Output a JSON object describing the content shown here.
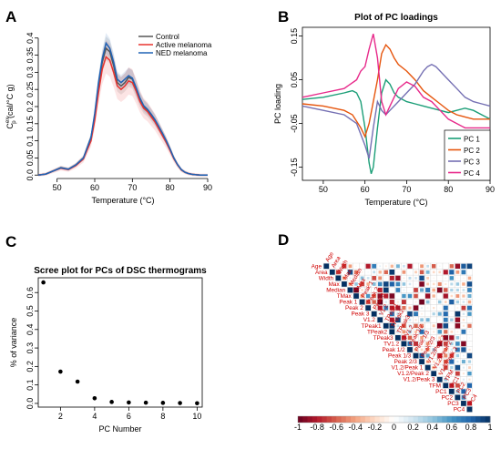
{
  "panels": {
    "A": {
      "letter": "A",
      "chart_data": {
        "type": "line",
        "title": "",
        "xlabel": "Temperature (°C)",
        "ylabel": "Cp ex (cal/°C g)",
        "ylabel_main": "C",
        "ylabel_sub": "p",
        "ylabel_sup": "ex",
        "ylabel_rest": " (cal/°C g)",
        "xlim": [
          45,
          90
        ],
        "ylim": [
          -0.01,
          0.41
        ],
        "xticks": [
          50,
          60,
          70,
          80,
          90
        ],
        "yticks": [
          0.0,
          0.05,
          0.1,
          0.15,
          0.2,
          0.25,
          0.3,
          0.35,
          0.4
        ],
        "ytick_labels": [
          "0.0",
          "0.05",
          "0.1",
          "0.15",
          "0.2",
          "0.25",
          "0.3",
          "0.35",
          "0.4"
        ],
        "legend_position": "top-right",
        "series": [
          {
            "name": "Control",
            "color": "#555555",
            "x": [
              45,
              47,
              49,
              51,
              53,
              55,
              57,
              59,
              60,
              61,
              62,
              63,
              64,
              65,
              66,
              67,
              68,
              69,
              70,
              71,
              72,
              73,
              74,
              75,
              76,
              77,
              78,
              79,
              80,
              81,
              82,
              83,
              84,
              85,
              86,
              87,
              88,
              89,
              90
            ],
            "y": [
              0.0,
              0.003,
              0.012,
              0.022,
              0.017,
              0.03,
              0.05,
              0.11,
              0.17,
              0.26,
              0.33,
              0.37,
              0.36,
              0.32,
              0.27,
              0.26,
              0.27,
              0.285,
              0.28,
              0.25,
              0.22,
              0.2,
              0.19,
              0.175,
              0.16,
              0.14,
              0.12,
              0.1,
              0.075,
              0.05,
              0.03,
              0.015,
              0.008,
              0.004,
              0.002,
              0.001,
              0.0,
              0.0,
              0.0
            ]
          },
          {
            "name": "Active melanoma",
            "color": "#e8322e",
            "x": [
              45,
              47,
              49,
              51,
              53,
              55,
              57,
              59,
              60,
              61,
              62,
              63,
              64,
              65,
              66,
              67,
              68,
              69,
              70,
              71,
              72,
              73,
              74,
              75,
              76,
              77,
              78,
              79,
              80,
              81,
              82,
              83,
              84,
              85,
              86,
              87,
              88,
              89,
              90
            ],
            "y": [
              0.0,
              0.003,
              0.012,
              0.02,
              0.016,
              0.028,
              0.047,
              0.1,
              0.16,
              0.24,
              0.31,
              0.345,
              0.335,
              0.3,
              0.26,
              0.25,
              0.26,
              0.275,
              0.27,
              0.245,
              0.215,
              0.195,
              0.185,
              0.17,
              0.155,
              0.135,
              0.115,
              0.095,
              0.072,
              0.048,
              0.03,
              0.015,
              0.008,
              0.004,
              0.002,
              0.001,
              0.0,
              0.0,
              0.0
            ]
          },
          {
            "name": "NED melanoma",
            "color": "#1f63b5",
            "x": [
              45,
              47,
              49,
              51,
              53,
              55,
              57,
              59,
              60,
              61,
              62,
              63,
              64,
              65,
              66,
              67,
              68,
              69,
              70,
              71,
              72,
              73,
              74,
              75,
              76,
              77,
              78,
              79,
              80,
              81,
              82,
              83,
              84,
              85,
              86,
              87,
              88,
              89,
              90
            ],
            "y": [
              0.0,
              0.003,
              0.012,
              0.021,
              0.017,
              0.03,
              0.05,
              0.11,
              0.18,
              0.27,
              0.34,
              0.385,
              0.37,
              0.33,
              0.28,
              0.27,
              0.28,
              0.29,
              0.283,
              0.255,
              0.225,
              0.203,
              0.192,
              0.178,
              0.162,
              0.142,
              0.122,
              0.1,
              0.076,
              0.05,
              0.031,
              0.016,
              0.008,
              0.004,
              0.002,
              0.001,
              0.0,
              0.0,
              0.0
            ]
          }
        ]
      }
    },
    "B": {
      "letter": "B",
      "chart_data": {
        "type": "line",
        "title": "Plot of PC loadings",
        "xlabel": "Temperature (°C)",
        "ylabel": "PC loading",
        "xlim": [
          45,
          90
        ],
        "ylim": [
          -0.18,
          0.17
        ],
        "xticks": [
          50,
          60,
          70,
          80,
          90
        ],
        "yticks": [
          -0.15,
          -0.05,
          0.05,
          0.15
        ],
        "ytick_labels": [
          "-0.15",
          "-0.05",
          "0.05",
          "0.15"
        ],
        "legend_position": "bottom-right",
        "series": [
          {
            "name": "PC 1",
            "color": "#1b9e77",
            "x": [
              45,
              50,
              55,
              57,
              58,
              59,
              60,
              61,
              61.5,
              62,
              63,
              64,
              65,
              66,
              67,
              68,
              70,
              72,
              74,
              76,
              78,
              80,
              82,
              84,
              86,
              88,
              90
            ],
            "y": [
              0.005,
              0.01,
              0.02,
              0.025,
              0.02,
              0.0,
              -0.06,
              -0.14,
              -0.165,
              -0.15,
              -0.06,
              0.02,
              0.05,
              0.04,
              0.02,
              0.01,
              0.0,
              -0.005,
              -0.01,
              -0.015,
              -0.02,
              -0.025,
              -0.02,
              -0.015,
              -0.02,
              -0.03,
              -0.04
            ]
          },
          {
            "name": "PC 2",
            "color": "#e6550d",
            "x": [
              45,
              50,
              55,
              57,
              59,
              60,
              61,
              62,
              63,
              64,
              65,
              66,
              67,
              68,
              70,
              72,
              74,
              76,
              78,
              80,
              82,
              84,
              86,
              88,
              90
            ],
            "y": [
              -0.005,
              -0.01,
              -0.02,
              -0.03,
              -0.06,
              -0.08,
              -0.05,
              0.0,
              0.05,
              0.11,
              0.13,
              0.12,
              0.1,
              0.085,
              0.07,
              0.05,
              0.025,
              0.01,
              -0.005,
              -0.02,
              -0.03,
              -0.035,
              -0.04,
              -0.04,
              -0.04
            ]
          },
          {
            "name": "PC 3",
            "color": "#7570b3",
            "x": [
              45,
              50,
              55,
              58,
              60,
              61,
              62,
              63,
              64,
              65,
              66,
              68,
              70,
              72,
              74,
              75,
              76,
              77,
              78,
              80,
              82,
              84,
              86,
              88,
              90
            ],
            "y": [
              -0.01,
              -0.02,
              -0.03,
              -0.05,
              -0.1,
              -0.13,
              -0.06,
              0.0,
              -0.02,
              -0.03,
              -0.02,
              0.0,
              0.02,
              0.04,
              0.07,
              0.08,
              0.085,
              0.08,
              0.07,
              0.05,
              0.03,
              0.01,
              0.0,
              -0.005,
              -0.01
            ]
          },
          {
            "name": "PC 4",
            "color": "#e7298a",
            "x": [
              45,
              50,
              55,
              58,
              59,
              60,
              61,
              62,
              63,
              64,
              65,
              66,
              68,
              70,
              72,
              74,
              76,
              78,
              80,
              82,
              84,
              86,
              88,
              90
            ],
            "y": [
              0.01,
              0.02,
              0.03,
              0.05,
              0.07,
              0.08,
              0.12,
              0.155,
              0.1,
              0.0,
              -0.03,
              -0.01,
              0.03,
              0.045,
              0.035,
              0.01,
              0.0,
              -0.02,
              -0.04,
              -0.05,
              -0.06,
              -0.06,
              -0.06,
              -0.06
            ]
          }
        ]
      }
    },
    "C": {
      "letter": "C",
      "chart_data": {
        "type": "scatter",
        "title": "Scree plot for PCs of DSC thermograms",
        "xlabel": "PC Number",
        "ylabel": "% of variance",
        "xlim": [
          0.7,
          10.3
        ],
        "ylim": [
          -0.02,
          0.68
        ],
        "xticks": [
          2,
          4,
          6,
          8,
          10
        ],
        "yticks": [
          0.0,
          0.1,
          0.2,
          0.3,
          0.4,
          0.5,
          0.6
        ],
        "ytick_labels": [
          "0.0",
          "0.1",
          "0.2",
          "0.3",
          "0.4",
          "0.5",
          "0.6"
        ],
        "x": [
          1,
          2,
          3,
          4,
          5,
          6,
          7,
          8,
          9,
          10
        ],
        "y": [
          0.655,
          0.172,
          0.118,
          0.028,
          0.008,
          0.005,
          0.004,
          0.003,
          0.002,
          0.001
        ]
      }
    },
    "D": {
      "letter": "D",
      "chart_data": {
        "type": "heatmap",
        "variables": [
          "Age",
          "Area",
          "Width",
          "Max",
          "Median",
          "T_Max",
          "Peak 1",
          "Peak 2",
          "Peak 3",
          "V1.2",
          "T_Peak1",
          "T_Peak2",
          "T_Peak3",
          "T_V1.2",
          "Peak 1/2",
          "Peak 1/3",
          "Peak 2/3",
          "V1.2/Peak 1",
          "V1.2/Peak 2",
          "V1.2/Peak 3",
          "T_FM",
          "PC1",
          "PC2",
          "PC3",
          "PC4"
        ],
        "colorbar_ticks": [
          "-1",
          "-0.8",
          "-0.6",
          "-0.4",
          "-0.2",
          "0",
          "0.2",
          "0.4",
          "0.6",
          "0.8",
          "1"
        ],
        "colorscale": [
          "#67001f",
          "#b2182b",
          "#d6604d",
          "#f4a582",
          "#fddbc7",
          "#ffffff",
          "#d1e5f0",
          "#92c5de",
          "#4393c3",
          "#2166ac",
          "#053061"
        ]
      }
    }
  }
}
